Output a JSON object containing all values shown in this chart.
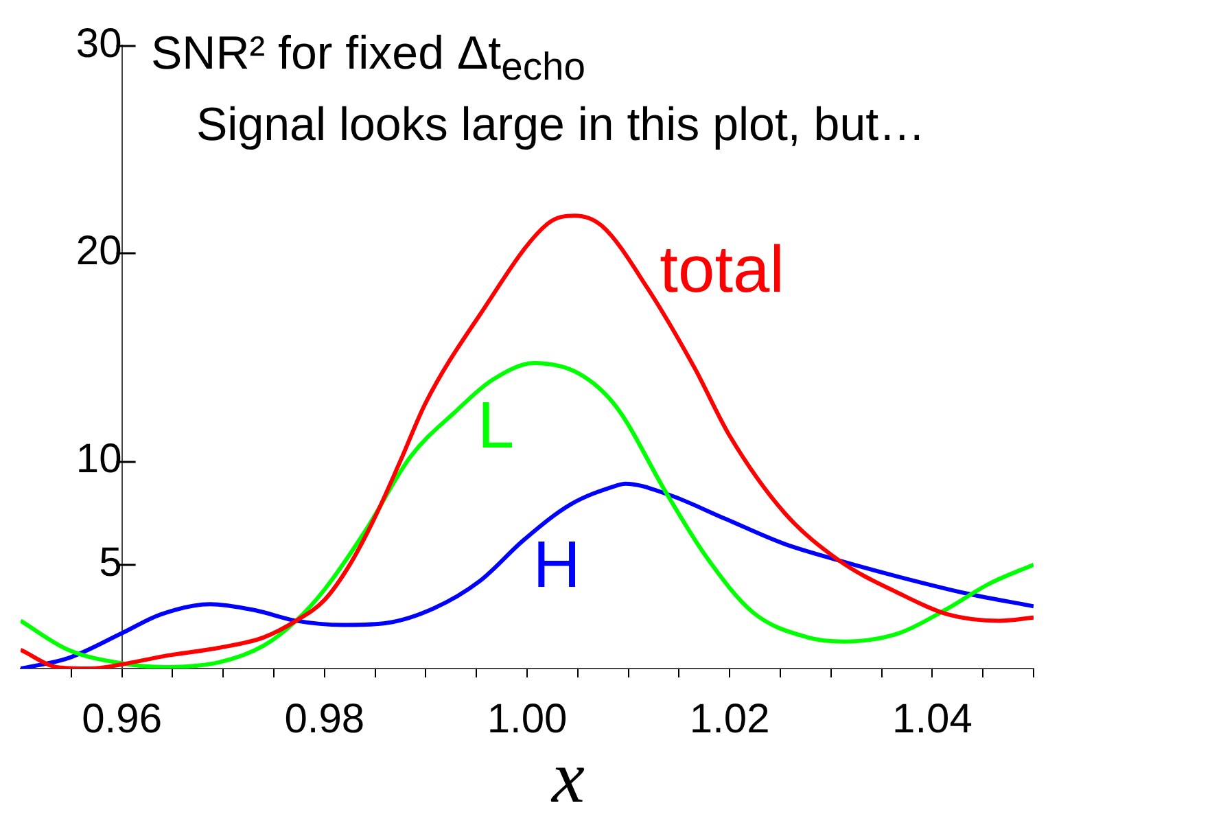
{
  "chart_data": {
    "type": "line",
    "title": "SNR² for fixed Δt$_{echo}$",
    "subtitle": "Signal looks large in this plot, but…",
    "xlabel": "x",
    "xlim": [
      0.95,
      1.05
    ],
    "xticks": [
      {
        "value": 0.955,
        "label": null
      },
      0.96,
      {
        "value": 0.965,
        "label": null
      },
      {
        "value": 0.97,
        "label": null
      },
      {
        "value": 0.975,
        "label": null
      },
      0.98,
      {
        "value": 0.985,
        "label": null
      },
      {
        "value": 0.99,
        "label": null
      },
      {
        "value": 0.995,
        "label": null
      },
      {
        "value": 1,
        "label": "1.00"
      },
      {
        "value": 1.005,
        "label": null
      },
      {
        "value": 1.01,
        "label": null
      },
      {
        "value": 1.015,
        "label": null
      },
      1.02,
      {
        "value": 1.025,
        "label": null
      },
      {
        "value": 1.03,
        "label": null
      },
      {
        "value": 1.035,
        "label": null
      },
      1.04,
      {
        "value": 1.045,
        "label": null
      },
      {
        "value": 1.05,
        "label": null
      }
    ],
    "ylim": [
      0,
      30
    ],
    "yticks": [
      5,
      10,
      20,
      30
    ],
    "grid": false,
    "legend": false,
    "marker": "none",
    "line_style": "solid",
    "series": [
      {
        "name": "total",
        "color": "#ff0000",
        "x": [
          0.95,
          0.9538,
          0.957,
          0.96,
          0.9642,
          0.9696,
          0.974,
          0.9772,
          0.98,
          0.9825,
          0.985,
          0.9875,
          0.99,
          0.9953,
          1.002,
          1.0047,
          1.0074,
          1.0119,
          1.0165,
          1.02,
          1.0254,
          1.0308,
          1.0368,
          1.0416,
          1.0466,
          1.05
        ],
        "values": [
          0.9,
          0.05,
          0,
          0.2,
          0.6,
          1.0,
          1.5,
          2.3,
          3.3,
          5,
          7.3,
          10,
          12.8,
          17.0,
          21.4,
          21.8,
          21.3,
          18.3,
          14.5,
          11.2,
          7.5,
          5.2,
          3.6,
          2.6,
          2.3,
          2.45
        ]
      },
      {
        "name": "L",
        "color": "#00ff00",
        "x": [
          0.95,
          0.9547,
          0.96,
          0.9642,
          0.9696,
          0.974,
          0.9772,
          0.98,
          0.984,
          0.9885,
          0.993,
          0.9966,
          1.0007,
          1.0051,
          1.0088,
          1.0138,
          1.0178,
          1.0223,
          1.0277,
          1.0313,
          1.0367,
          1.0412,
          1.0457,
          1.05
        ],
        "values": [
          2.3,
          0.9,
          0.25,
          0.07,
          0.3,
          1.1,
          2.3,
          3.8,
          6.6,
          10.2,
          12.4,
          13.9,
          14.7,
          14.2,
          12.6,
          8.4,
          5.3,
          2.7,
          1.5,
          1.3,
          1.7,
          2.8,
          4.1,
          5.0
        ]
      },
      {
        "name": "H",
        "color": "#0000ff",
        "x": [
          0.95,
          0.9547,
          0.96,
          0.9638,
          0.9687,
          0.9732,
          0.9772,
          0.9818,
          0.9862,
          0.9908,
          0.9953,
          0.9997,
          1.0043,
          1.0088,
          1.0097,
          1.0138,
          1.0196,
          1.0254,
          1.0308,
          1.0368,
          1.0435,
          1.05
        ],
        "values": [
          0,
          0.5,
          1.7,
          2.6,
          3.1,
          2.8,
          2.3,
          2.1,
          2.2,
          2.9,
          4.2,
          6.2,
          7.9,
          8.8,
          8.9,
          8.4,
          7.2,
          6.0,
          5.2,
          4.4,
          3.6,
          3.0
        ]
      }
    ]
  }
}
